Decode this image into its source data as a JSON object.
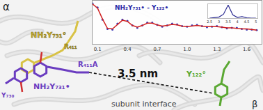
{
  "labels": {
    "alpha": "α",
    "beta": "β",
    "nh2y731_yellow": "NH₂Y₇₃₁°",
    "r411": "R₄₁₁",
    "r411a": "R₄₁₁A",
    "y730": "Y₇₃₀",
    "nh2y731_radical": "NH₂Y₇₃₁•",
    "distance": "3.5 nm",
    "interface": "subunit interface",
    "y122": "Y₁₂₂°"
  },
  "chart_data": [
    {
      "type": "scatter",
      "title": "NH₂Y₇₃₁• - Y₁₂₂•",
      "x": [
        0.05,
        0.1,
        0.15,
        0.2,
        0.25,
        0.3,
        0.35,
        0.4,
        0.45,
        0.5,
        0.55,
        0.6,
        0.65,
        0.7,
        0.75,
        0.8,
        0.85,
        0.9,
        0.95,
        1.0,
        1.05,
        1.1,
        1.15,
        1.2,
        1.25,
        1.3,
        1.35,
        1.4,
        1.45,
        1.5,
        1.55,
        1.6,
        1.65,
        1.7
      ],
      "series": [
        {
          "color": "#3a3ab8",
          "marker": "circle",
          "values": [
            1.0,
            0.93,
            0.72,
            0.56,
            0.55,
            0.65,
            0.72,
            0.7,
            0.62,
            0.58,
            0.62,
            0.67,
            0.67,
            0.63,
            0.6,
            0.62,
            0.65,
            0.64,
            0.61,
            0.6,
            0.62,
            0.63,
            0.61,
            0.59,
            0.6,
            0.61,
            0.59,
            0.57,
            0.58,
            0.58,
            0.56,
            0.55,
            0.55,
            0.54
          ]
        },
        {
          "color": "#d02020",
          "line_style": "solid",
          "values": [
            0.99,
            0.92,
            0.73,
            0.57,
            0.56,
            0.64,
            0.71,
            0.69,
            0.62,
            0.59,
            0.62,
            0.66,
            0.66,
            0.63,
            0.61,
            0.62,
            0.64,
            0.63,
            0.61,
            0.6,
            0.61,
            0.62,
            0.61,
            0.6,
            0.6,
            0.6,
            0.59,
            0.58,
            0.58,
            0.57,
            0.56,
            0.56,
            0.55,
            0.54
          ]
        }
      ],
      "xlim": [
        0.05,
        1.75
      ],
      "xticks": [
        0.1,
        0.4,
        0.7,
        {
          "value": 1,
          "label": "1.0"
        },
        1.3,
        1.6
      ],
      "ylim": [
        0.3,
        1.05
      ],
      "tick_labels": "x",
      "grid": false
    },
    {
      "type": "line",
      "x": [
        2.5,
        2.75,
        3.0,
        3.25,
        3.5,
        3.75,
        4.0,
        4.25,
        4.5,
        4.75,
        5.0
      ],
      "values": [
        0,
        0.02,
        0.08,
        0.3,
        1.0,
        0.25,
        0.05,
        0.12,
        0.03,
        0,
        0
      ],
      "color": "#2a2a90",
      "xlim": [
        2.4,
        5.1
      ],
      "xticks": [
        2.5,
        3,
        3.5,
        4,
        4.5,
        5
      ],
      "ylim": [
        0,
        1.05
      ],
      "tick_labels": "x",
      "grid": false
    }
  ]
}
